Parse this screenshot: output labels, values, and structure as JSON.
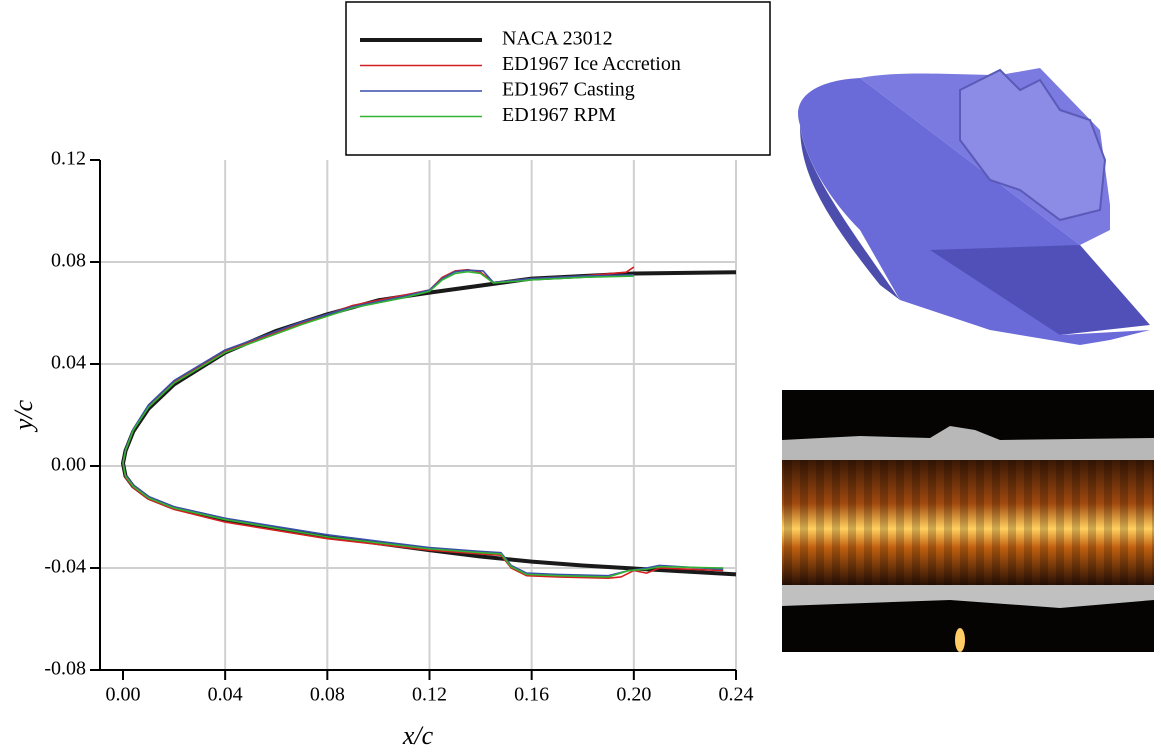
{
  "chart_data": {
    "type": "line",
    "x_label": "x/c",
    "y_label": "y/c",
    "xlim": [
      -0.009,
      0.24
    ],
    "ylim": [
      -0.08,
      0.12
    ],
    "xticks": [
      {
        "value": 0,
        "label": "0.00"
      },
      {
        "value": 0.04,
        "label": "0.04"
      },
      {
        "value": 0.08,
        "label": "0.08"
      },
      {
        "value": 0.12,
        "label": "0.12"
      },
      {
        "value": 0.16,
        "label": "0.16"
      },
      {
        "value": 0.2,
        "label": "0.20"
      },
      {
        "value": 0.24,
        "label": "0.24"
      }
    ],
    "yticks": [
      {
        "value": -0.08,
        "label": "-0.08"
      },
      {
        "value": -0.04,
        "label": "-0.04"
      },
      {
        "value": 0,
        "label": "0.00"
      },
      {
        "value": 0.04,
        "label": "0.04"
      },
      {
        "value": 0.08,
        "label": "0.08"
      },
      {
        "value": 0.12,
        "label": "0.12"
      }
    ],
    "grid": true,
    "series": [
      {
        "name": "NACA 23012",
        "color": "#1a1a1a",
        "x": [
          0.24,
          0.2,
          0.16,
          0.12,
          0.1,
          0.08,
          0.06,
          0.04,
          0.02,
          0.01,
          0.004,
          0.001,
          0,
          0.001,
          0.004,
          0.01,
          0.02,
          0.04,
          0.06,
          0.08,
          0.1,
          0.12,
          0.14,
          0.16,
          0.18,
          0.2,
          0.24
        ],
        "values": [
          0.076,
          0.0755,
          0.0735,
          0.068,
          0.065,
          0.0595,
          0.053,
          0.0445,
          0.032,
          0.0225,
          0.0135,
          0.006,
          0.001,
          -0.004,
          -0.008,
          -0.0125,
          -0.0165,
          -0.021,
          -0.0245,
          -0.0275,
          -0.0303,
          -0.033,
          -0.0355,
          -0.0375,
          -0.039,
          -0.0402,
          -0.0425
        ]
      },
      {
        "name": "ED1967 Ice Accretion",
        "color": "#d42020",
        "x": [
          0.2,
          0.197,
          0.18,
          0.16,
          0.155,
          0.15,
          0.145,
          0.14,
          0.135,
          0.13,
          0.125,
          0.12,
          0.11,
          0.09,
          0.07,
          0.04,
          0.02,
          0.01,
          0.004,
          0.001,
          0,
          0.001,
          0.004,
          0.01,
          0.02,
          0.04,
          0.08,
          0.12,
          0.14,
          0.148,
          0.152,
          0.158,
          0.17,
          0.19,
          0.195,
          0.2,
          0.205,
          0.21,
          0.235
        ],
        "values": [
          0.078,
          0.076,
          0.0745,
          0.0735,
          0.073,
          0.0725,
          0.072,
          0.076,
          0.077,
          0.0765,
          0.074,
          0.069,
          0.067,
          0.063,
          0.056,
          0.045,
          0.033,
          0.0235,
          0.014,
          0.006,
          0.001,
          -0.0045,
          -0.0085,
          -0.013,
          -0.017,
          -0.022,
          -0.0285,
          -0.033,
          -0.0345,
          -0.035,
          -0.04,
          -0.043,
          -0.0435,
          -0.044,
          -0.0435,
          -0.041,
          -0.042,
          -0.04,
          -0.041
        ]
      },
      {
        "name": "ED1967 Casting",
        "color": "#3a4fa8",
        "x": [
          0.2,
          0.18,
          0.16,
          0.155,
          0.15,
          0.145,
          0.141,
          0.135,
          0.13,
          0.125,
          0.12,
          0.11,
          0.09,
          0.07,
          0.04,
          0.02,
          0.01,
          0.004,
          0.001,
          0,
          0.001,
          0.004,
          0.01,
          0.02,
          0.04,
          0.08,
          0.12,
          0.14,
          0.148,
          0.152,
          0.158,
          0.17,
          0.19,
          0.198,
          0.205,
          0.21,
          0.235
        ],
        "values": [
          0.075,
          0.0745,
          0.0735,
          0.073,
          0.0725,
          0.072,
          0.0765,
          0.0768,
          0.0762,
          0.0735,
          0.069,
          0.0665,
          0.0625,
          0.0565,
          0.0455,
          0.0335,
          0.024,
          0.0145,
          0.0065,
          0.0015,
          -0.0035,
          -0.0075,
          -0.012,
          -0.016,
          -0.0205,
          -0.027,
          -0.032,
          -0.0335,
          -0.034,
          -0.039,
          -0.042,
          -0.0425,
          -0.043,
          -0.041,
          -0.04,
          -0.039,
          -0.0405
        ]
      },
      {
        "name": "ED1967 RPM",
        "color": "#33b233",
        "x": [
          0.2,
          0.18,
          0.16,
          0.155,
          0.15,
          0.145,
          0.14,
          0.135,
          0.13,
          0.125,
          0.12,
          0.11,
          0.09,
          0.07,
          0.04,
          0.02,
          0.01,
          0.004,
          0.001,
          0,
          0.001,
          0.004,
          0.01,
          0.02,
          0.04,
          0.08,
          0.12,
          0.14,
          0.148,
          0.152,
          0.158,
          0.17,
          0.19,
          0.198,
          0.205,
          0.21,
          0.235
        ],
        "values": [
          0.0745,
          0.074,
          0.073,
          0.0725,
          0.0722,
          0.0718,
          0.0755,
          0.0762,
          0.0755,
          0.073,
          0.0685,
          0.066,
          0.062,
          0.0555,
          0.0445,
          0.0325,
          0.023,
          0.014,
          0.006,
          0.001,
          -0.004,
          -0.008,
          -0.0125,
          -0.0165,
          -0.021,
          -0.0278,
          -0.0325,
          -0.034,
          -0.0345,
          -0.0395,
          -0.0425,
          -0.043,
          -0.0435,
          -0.041,
          -0.0405,
          -0.0395,
          -0.04
        ]
      }
    ]
  }
}
